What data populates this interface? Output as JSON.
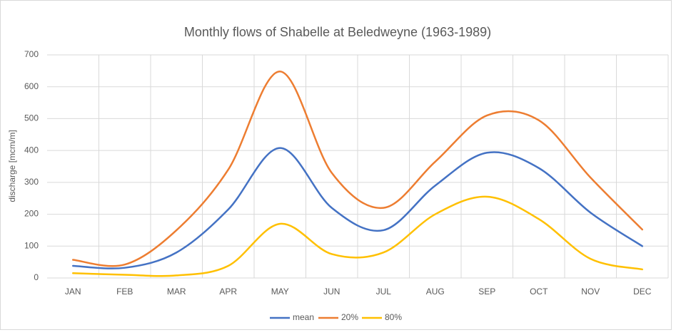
{
  "chart_data": {
    "type": "line",
    "title": "Monthly flows of Shabelle at Beledweyne (1963-1989)",
    "ylabel": "discharge [mcm/m]",
    "categories": [
      "JAN",
      "FEB",
      "MAR",
      "APR",
      "MAY",
      "JUN",
      "JUL",
      "AUG",
      "SEP",
      "OCT",
      "NOV",
      "DEC"
    ],
    "series": [
      {
        "name": "mean",
        "color": "#4472c4",
        "values": [
          38,
          32,
          80,
          215,
          408,
          220,
          150,
          290,
          393,
          345,
          205,
          100
        ]
      },
      {
        "name": "20%",
        "color": "#ed7d31",
        "values": [
          57,
          42,
          150,
          340,
          648,
          330,
          220,
          365,
          510,
          495,
          315,
          152
        ]
      },
      {
        "name": "80%",
        "color": "#ffc000",
        "values": [
          15,
          10,
          8,
          38,
          170,
          75,
          80,
          200,
          255,
          185,
          60,
          27
        ]
      }
    ],
    "ylim": [
      0,
      700
    ],
    "yticks": [
      0,
      100,
      200,
      300,
      400,
      500,
      600,
      700
    ],
    "grid": true,
    "smooth": true,
    "legend": "bottom"
  }
}
